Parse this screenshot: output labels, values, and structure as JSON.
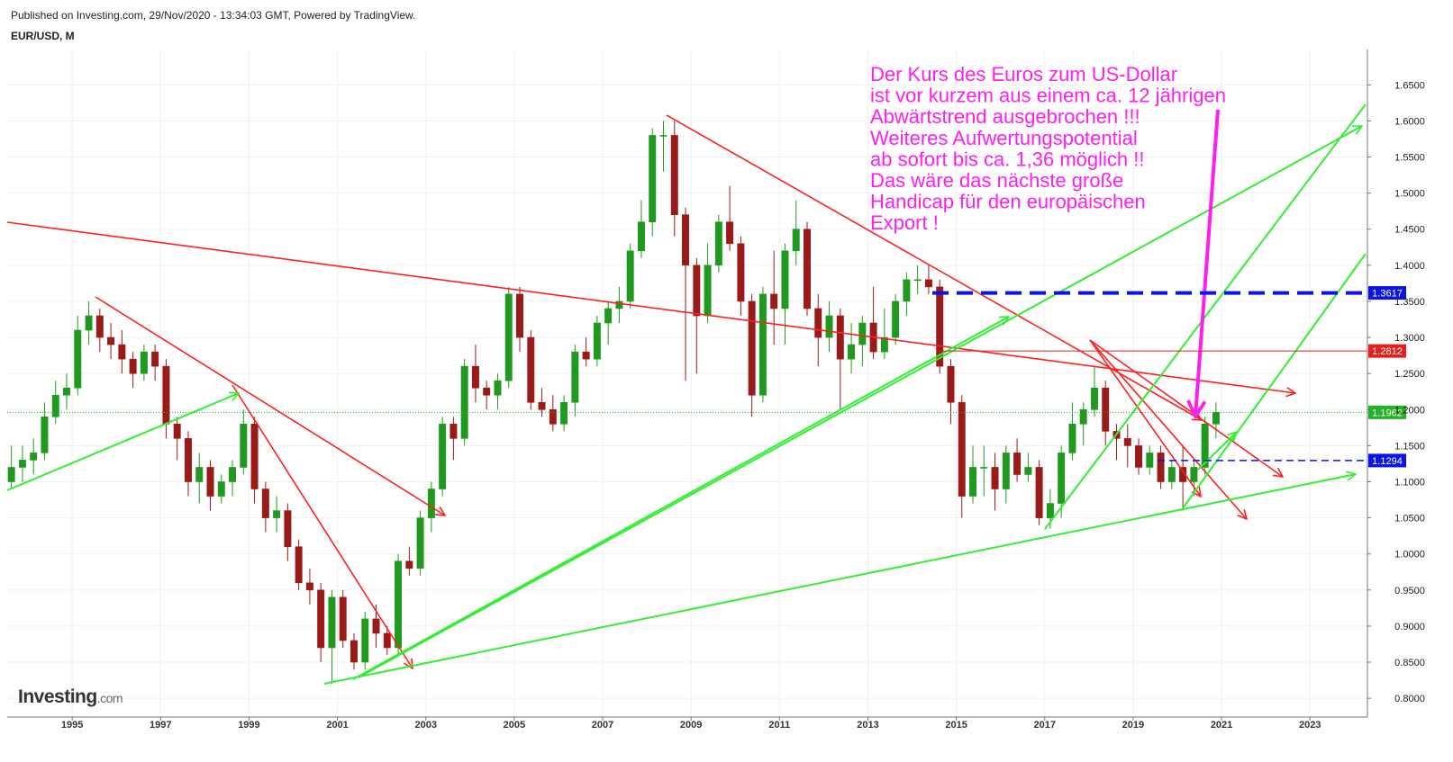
{
  "header": {
    "published": "Published on Investing.com, 29/Nov/2020 - 13:34:03 GMT, Powered by TradingView."
  },
  "logo": {
    "brand": "Investing",
    "suffix": ".com"
  },
  "chart_data": {
    "type": "candlestick",
    "title": "EUR/USD, M",
    "x": [
      1993.625,
      1993.875,
      1994.125,
      1994.375,
      1994.625,
      1994.875,
      1995.125,
      1995.375,
      1995.625,
      1995.875,
      1996.125,
      1996.375,
      1996.625,
      1996.875,
      1997.125,
      1997.375,
      1997.625,
      1997.875,
      1998.125,
      1998.375,
      1998.625,
      1998.875,
      1999.125,
      1999.375,
      1999.625,
      1999.875,
      2000.125,
      2000.375,
      2000.625,
      2000.875,
      2001.125,
      2001.375,
      2001.625,
      2001.875,
      2002.125,
      2002.375,
      2002.625,
      2002.875,
      2003.125,
      2003.375,
      2003.625,
      2003.875,
      2004.125,
      2004.375,
      2004.625,
      2004.875,
      2005.125,
      2005.375,
      2005.625,
      2005.875,
      2006.125,
      2006.375,
      2006.625,
      2006.875,
      2007.125,
      2007.375,
      2007.625,
      2007.875,
      2008.125,
      2008.375,
      2008.625,
      2008.875,
      2009.125,
      2009.375,
      2009.625,
      2009.875,
      2010.125,
      2010.375,
      2010.625,
      2010.875,
      2011.125,
      2011.375,
      2011.625,
      2011.875,
      2012.125,
      2012.375,
      2012.625,
      2012.875,
      2013.125,
      2013.375,
      2013.625,
      2013.875,
      2014.125,
      2014.375,
      2014.625,
      2014.875,
      2015.125,
      2015.375,
      2015.625,
      2015.875,
      2016.125,
      2016.375,
      2016.625,
      2016.875,
      2017.125,
      2017.375,
      2017.625,
      2017.875,
      2018.125,
      2018.375,
      2018.625,
      2018.875,
      2019.125,
      2019.375,
      2019.625,
      2019.875,
      2020.125,
      2020.375,
      2020.625,
      2020.875
    ],
    "open": [
      1.1,
      1.12,
      1.13,
      1.14,
      1.19,
      1.22,
      1.23,
      1.31,
      1.33,
      1.3,
      1.29,
      1.27,
      1.25,
      1.28,
      1.26,
      1.18,
      1.16,
      1.1,
      1.12,
      1.08,
      1.1,
      1.12,
      1.18,
      1.09,
      1.05,
      1.06,
      1.01,
      0.96,
      0.95,
      0.87,
      0.94,
      0.88,
      0.85,
      0.91,
      0.89,
      0.87,
      0.99,
      0.98,
      1.05,
      1.09,
      1.18,
      1.16,
      1.26,
      1.23,
      1.22,
      1.24,
      1.36,
      1.3,
      1.21,
      1.2,
      1.18,
      1.21,
      1.28,
      1.27,
      1.32,
      1.34,
      1.35,
      1.42,
      1.46,
      1.58,
      1.58,
      1.47,
      1.4,
      1.33,
      1.4,
      1.46,
      1.43,
      1.35,
      1.22,
      1.36,
      1.34,
      1.42,
      1.45,
      1.34,
      1.3,
      1.33,
      1.27,
      1.29,
      1.32,
      1.28,
      1.3,
      1.35,
      1.38,
      1.38,
      1.37,
      1.26,
      1.21,
      1.08,
      1.12,
      1.12,
      1.09,
      1.14,
      1.11,
      1.12,
      1.05,
      1.07,
      1.14,
      1.18,
      1.2,
      1.23,
      1.17,
      1.16,
      1.15,
      1.12,
      1.14,
      1.1,
      1.12,
      1.1,
      1.12,
      1.18
    ],
    "high": [
      1.15,
      1.15,
      1.16,
      1.21,
      1.24,
      1.25,
      1.33,
      1.35,
      1.34,
      1.32,
      1.31,
      1.28,
      1.29,
      1.29,
      1.27,
      1.19,
      1.17,
      1.14,
      1.13,
      1.11,
      1.13,
      1.2,
      1.19,
      1.1,
      1.08,
      1.07,
      1.02,
      0.98,
      0.96,
      0.95,
      0.95,
      0.89,
      0.92,
      0.93,
      0.9,
      1.0,
      1.01,
      1.06,
      1.1,
      1.19,
      1.19,
      1.27,
      1.29,
      1.24,
      1.25,
      1.37,
      1.37,
      1.31,
      1.23,
      1.22,
      1.22,
      1.29,
      1.3,
      1.33,
      1.35,
      1.37,
      1.43,
      1.49,
      1.59,
      1.6,
      1.6,
      1.48,
      1.41,
      1.43,
      1.47,
      1.51,
      1.44,
      1.36,
      1.37,
      1.42,
      1.43,
      1.49,
      1.46,
      1.36,
      1.35,
      1.34,
      1.32,
      1.33,
      1.37,
      1.34,
      1.36,
      1.39,
      1.4,
      1.4,
      1.38,
      1.27,
      1.22,
      1.15,
      1.15,
      1.14,
      1.15,
      1.16,
      1.14,
      1.13,
      1.09,
      1.15,
      1.21,
      1.21,
      1.26,
      1.24,
      1.18,
      1.18,
      1.16,
      1.15,
      1.15,
      1.13,
      1.15,
      1.13,
      1.19,
      1.21
    ],
    "low": [
      1.09,
      1.1,
      1.11,
      1.13,
      1.18,
      1.2,
      1.22,
      1.29,
      1.28,
      1.27,
      1.25,
      1.23,
      1.24,
      1.24,
      1.16,
      1.13,
      1.08,
      1.07,
      1.06,
      1.07,
      1.08,
      1.11,
      1.07,
      1.03,
      1.03,
      0.99,
      0.95,
      0.93,
      0.85,
      0.82,
      0.87,
      0.84,
      0.84,
      0.87,
      0.86,
      0.86,
      0.97,
      0.97,
      1.03,
      1.08,
      1.13,
      1.15,
      1.21,
      1.2,
      1.2,
      1.23,
      1.28,
      1.2,
      1.19,
      1.17,
      1.17,
      1.19,
      1.26,
      1.26,
      1.29,
      1.32,
      1.34,
      1.41,
      1.44,
      1.53,
      1.44,
      1.24,
      1.25,
      1.32,
      1.39,
      1.42,
      1.33,
      1.19,
      1.21,
      1.29,
      1.29,
      1.4,
      1.33,
      1.26,
      1.28,
      1.2,
      1.25,
      1.26,
      1.27,
      1.27,
      1.29,
      1.33,
      1.36,
      1.36,
      1.25,
      1.18,
      1.05,
      1.07,
      1.08,
      1.06,
      1.07,
      1.1,
      1.1,
      1.04,
      1.035,
      1.05,
      1.13,
      1.15,
      1.19,
      1.15,
      1.13,
      1.12,
      1.11,
      1.11,
      1.09,
      1.09,
      1.06,
      1.08,
      1.11,
      1.16
    ],
    "close": [
      1.12,
      1.13,
      1.14,
      1.19,
      1.22,
      1.23,
      1.31,
      1.33,
      1.3,
      1.29,
      1.27,
      1.25,
      1.28,
      1.26,
      1.18,
      1.16,
      1.1,
      1.12,
      1.08,
      1.1,
      1.12,
      1.18,
      1.09,
      1.05,
      1.06,
      1.01,
      0.96,
      0.95,
      0.87,
      0.94,
      0.88,
      0.85,
      0.91,
      0.89,
      0.87,
      0.99,
      0.98,
      1.05,
      1.09,
      1.18,
      1.16,
      1.26,
      1.23,
      1.22,
      1.24,
      1.36,
      1.3,
      1.21,
      1.2,
      1.18,
      1.21,
      1.28,
      1.27,
      1.32,
      1.34,
      1.35,
      1.42,
      1.46,
      1.58,
      1.58,
      1.47,
      1.4,
      1.33,
      1.4,
      1.46,
      1.43,
      1.35,
      1.22,
      1.36,
      1.34,
      1.42,
      1.45,
      1.34,
      1.3,
      1.33,
      1.27,
      1.29,
      1.32,
      1.28,
      1.3,
      1.35,
      1.38,
      1.38,
      1.37,
      1.26,
      1.21,
      1.08,
      1.12,
      1.12,
      1.09,
      1.14,
      1.11,
      1.12,
      1.05,
      1.07,
      1.14,
      1.18,
      1.2,
      1.23,
      1.17,
      1.16,
      1.15,
      1.12,
      1.14,
      1.1,
      1.12,
      1.1,
      1.12,
      1.18,
      1.1962
    ],
    "up_color": "#1f9a1f",
    "down_color": "#9a1a1a",
    "xlim": [
      1993.53,
      2024.3
    ],
    "xticks": [
      1995,
      1997,
      1999,
      2001,
      2003,
      2005,
      2007,
      2009,
      2011,
      2013,
      2015,
      2017,
      2019,
      2021,
      2023
    ],
    "ylim": [
      0.774,
      1.699
    ],
    "yticks": [
      {
        "value": 0.8,
        "label": "0.8000"
      },
      {
        "value": 0.85,
        "label": "0.8500"
      },
      {
        "value": 0.9,
        "label": "0.9000"
      },
      {
        "value": 0.95,
        "label": "0.9500"
      },
      {
        "value": 1.0,
        "label": "1.0000"
      },
      {
        "value": 1.05,
        "label": "1.0500"
      },
      {
        "value": 1.1,
        "label": "1.1000"
      },
      {
        "value": 1.15,
        "label": "1.1500"
      },
      {
        "value": 1.2,
        "label": "1.2000"
      },
      {
        "value": 1.25,
        "label": "1.2500"
      },
      {
        "value": 1.3,
        "label": "1.3000"
      },
      {
        "value": 1.35,
        "label": "1.3500"
      },
      {
        "value": 1.4,
        "label": "1.4000"
      },
      {
        "value": 1.45,
        "label": "1.4500"
      },
      {
        "value": 1.5,
        "label": "1.5000"
      },
      {
        "value": 1.55,
        "label": "1.5500"
      },
      {
        "value": 1.6,
        "label": "1.6000"
      },
      {
        "value": 1.65,
        "label": "1.6500"
      }
    ],
    "grid": true,
    "levels": [
      {
        "value": 1.3617,
        "label": "1.3617",
        "color": "#0a14e6"
      },
      {
        "value": 1.2812,
        "label": "1.2812",
        "color": "#e61e1e"
      },
      {
        "value": 1.1294,
        "label": "1.1294",
        "color": "#0a14e6"
      }
    ],
    "last_price": {
      "value": 1.1962,
      "label": "1.1962",
      "color": "#23b423"
    },
    "annotation": [
      "Der Kurs des Euros zum US-Dollar",
      "ist vor kurzem aus einem ca. 12 jährigen",
      "Abwärtstrend ausgebrochen !!!",
      "Weiteres Aufwertungspotential",
      "ab sofort bis ca. 1,36 möglich !!",
      "Das wäre das nächste große",
      "Handicap für den europäischen",
      "Export !"
    ],
    "annotation_color": "#ff1ef0"
  }
}
